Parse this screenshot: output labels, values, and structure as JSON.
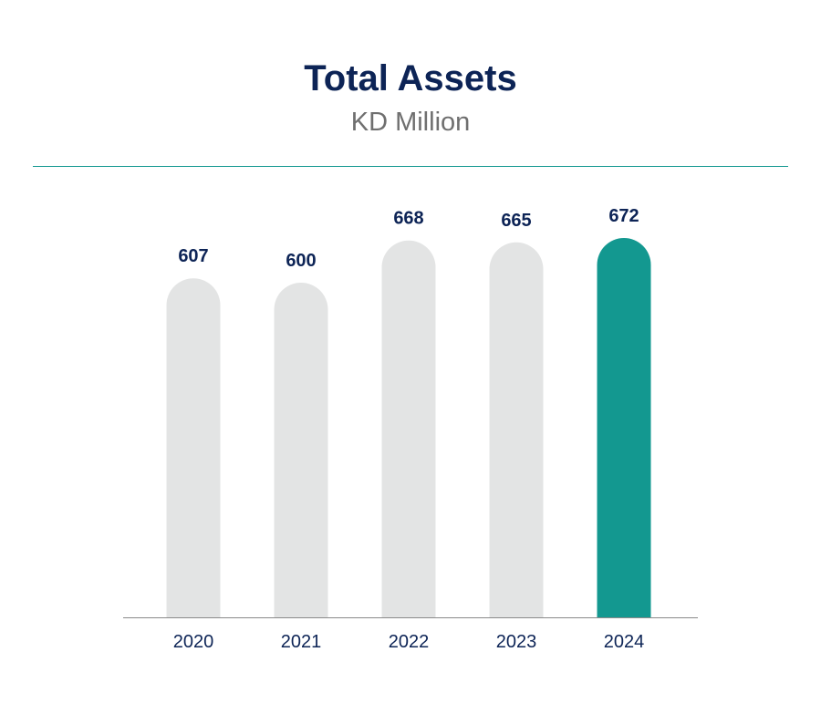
{
  "chart_data": {
    "type": "bar",
    "title": "Total Assets",
    "subtitle": "KD Million",
    "xlabel": "",
    "ylabel": "",
    "categories": [
      "2020",
      "2021",
      "2022",
      "2023",
      "2024"
    ],
    "values": [
      607,
      600,
      668,
      665,
      672
    ],
    "value_labels": [
      "607",
      "600",
      "668",
      "665",
      "672"
    ],
    "highlight_index": 4,
    "colors": {
      "bar": "#e3e4e4",
      "highlight": "#139890",
      "title": "#0d2456",
      "subtitle": "#6f6f6f",
      "axis": "#8a8a8a",
      "divider": "#139890"
    },
    "grid": false,
    "legend": "none"
  }
}
